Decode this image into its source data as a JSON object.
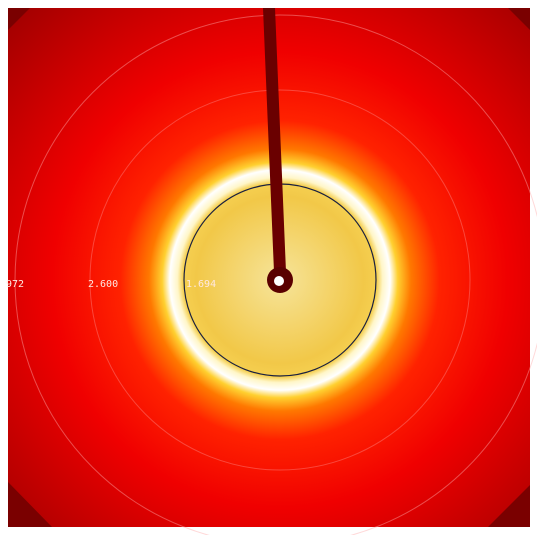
{
  "ring_labels": [
    "972",
    "2.600",
    "1.694"
  ]
}
